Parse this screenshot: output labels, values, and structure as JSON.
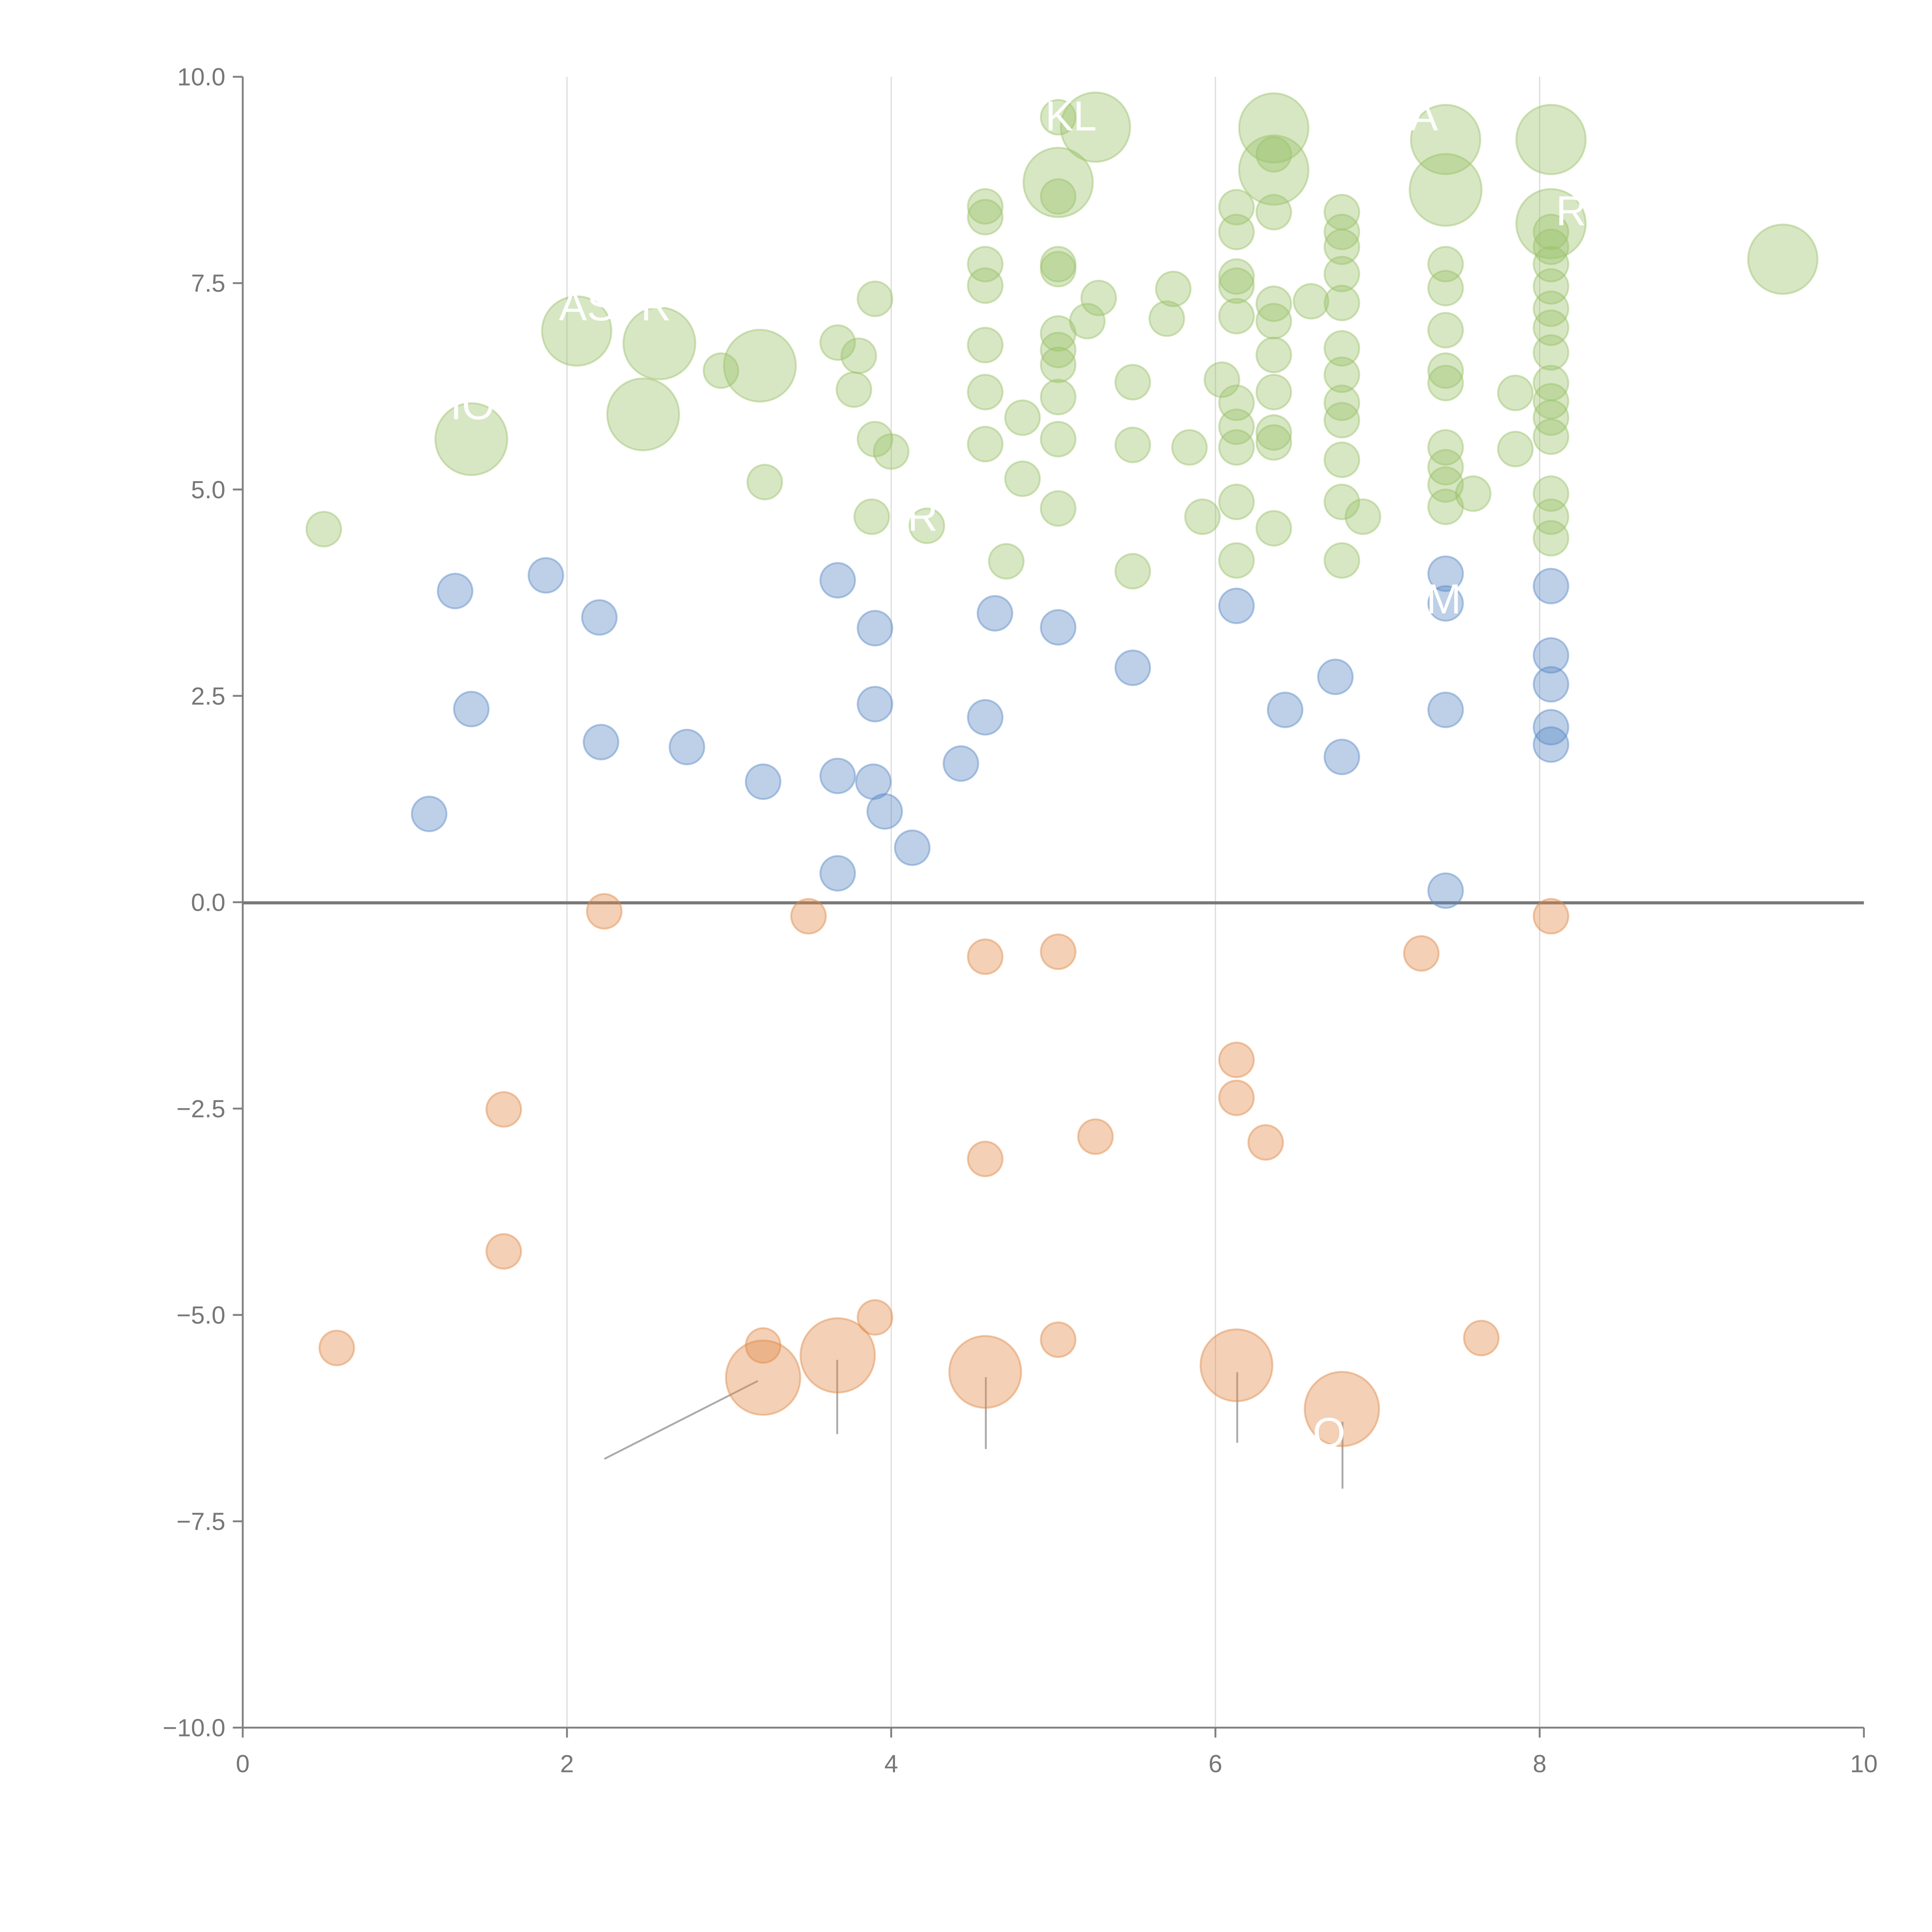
{
  "chart_data": {
    "type": "scatter",
    "title": "",
    "xlabel": "",
    "ylabel": "",
    "xlim": [
      0,
      10
    ],
    "ylim": [
      -10,
      10
    ],
    "grid": "vertical",
    "x_ticks": [
      "0",
      "2",
      "4",
      "6",
      "8",
      "10"
    ],
    "y_ticks": [
      "10.0",
      "7.5",
      "5.0",
      "2.5",
      "0.0",
      "−2.5",
      "−5.0",
      "−7.5",
      "−10.0"
    ],
    "point_format": "[x, y, size]",
    "series": [
      {
        "name": "green",
        "color": "#9cc26b",
        "points": [
          [
            2.06,
            6.92,
            4
          ],
          [
            2.57,
            6.77,
            4.3
          ],
          [
            2.47,
            5.91,
            4.3
          ],
          [
            1.41,
            5.61,
            4.3
          ],
          [
            3.19,
            6.5,
            4.3
          ],
          [
            5.03,
            8.72,
            4
          ],
          [
            5.26,
            9.39,
            4
          ],
          [
            6.36,
            9.38,
            4
          ],
          [
            6.36,
            8.87,
            4
          ],
          [
            7.42,
            9.24,
            4
          ],
          [
            7.42,
            8.63,
            4.3
          ],
          [
            8.07,
            9.24,
            4
          ],
          [
            8.07,
            8.22,
            4
          ],
          [
            9.5,
            7.79,
            4
          ],
          [
            0.5,
            4.52,
            1
          ],
          [
            2.95,
            6.44,
            1
          ],
          [
            3.22,
            5.09,
            1
          ],
          [
            3.67,
            6.78,
            1
          ],
          [
            3.8,
            6.62,
            1
          ],
          [
            3.77,
            6.21,
            1
          ],
          [
            3.9,
            7.31,
            1
          ],
          [
            3.9,
            5.61,
            1
          ],
          [
            4.0,
            5.46,
            1
          ],
          [
            3.88,
            4.67,
            1
          ],
          [
            4.22,
            4.56,
            1
          ],
          [
            4.58,
            8.43,
            1
          ],
          [
            4.58,
            8.3,
            1
          ],
          [
            4.58,
            7.73,
            1
          ],
          [
            4.58,
            7.47,
            1
          ],
          [
            4.58,
            6.75,
            1
          ],
          [
            4.58,
            6.18,
            1
          ],
          [
            4.58,
            5.55,
            1
          ],
          [
            4.71,
            4.13,
            1
          ],
          [
            4.81,
            5.87,
            1
          ],
          [
            4.81,
            5.13,
            1
          ],
          [
            5.03,
            9.51,
            1
          ],
          [
            5.03,
            8.55,
            1
          ],
          [
            5.03,
            7.73,
            1
          ],
          [
            5.03,
            7.67,
            1
          ],
          [
            5.03,
            6.89,
            1
          ],
          [
            5.03,
            6.69,
            1
          ],
          [
            5.03,
            6.51,
            1
          ],
          [
            5.03,
            6.12,
            1
          ],
          [
            5.03,
            5.61,
            1
          ],
          [
            5.03,
            4.77,
            1
          ],
          [
            5.21,
            7.04,
            1
          ],
          [
            5.28,
            7.32,
            1
          ],
          [
            5.49,
            6.3,
            1
          ],
          [
            5.49,
            5.54,
            1
          ],
          [
            5.49,
            4.01,
            1
          ],
          [
            5.7,
            7.07,
            1
          ],
          [
            5.74,
            7.43,
            1
          ],
          [
            5.84,
            5.51,
            1
          ],
          [
            5.92,
            4.67,
            1
          ],
          [
            6.04,
            6.33,
            1
          ],
          [
            6.13,
            8.42,
            1
          ],
          [
            6.13,
            8.12,
            1
          ],
          [
            6.13,
            7.58,
            1
          ],
          [
            6.13,
            7.47,
            1
          ],
          [
            6.13,
            7.1,
            1
          ],
          [
            6.13,
            6.05,
            1
          ],
          [
            6.13,
            5.76,
            1
          ],
          [
            6.13,
            5.51,
            1
          ],
          [
            6.13,
            4.85,
            1
          ],
          [
            6.13,
            4.14,
            1
          ],
          [
            6.36,
            9.06,
            1
          ],
          [
            6.36,
            8.36,
            1
          ],
          [
            6.36,
            7.25,
            1
          ],
          [
            6.36,
            7.04,
            1
          ],
          [
            6.36,
            6.63,
            1
          ],
          [
            6.36,
            6.18,
            1
          ],
          [
            6.36,
            5.69,
            1
          ],
          [
            6.36,
            5.57,
            1
          ],
          [
            6.36,
            4.53,
            1
          ],
          [
            6.59,
            7.28,
            1
          ],
          [
            6.78,
            8.36,
            1
          ],
          [
            6.78,
            8.12,
            1
          ],
          [
            6.78,
            7.94,
            1
          ],
          [
            6.78,
            7.61,
            1
          ],
          [
            6.78,
            7.26,
            1
          ],
          [
            6.78,
            6.71,
            1
          ],
          [
            6.78,
            6.39,
            1
          ],
          [
            6.78,
            6.05,
            1
          ],
          [
            6.78,
            5.84,
            1
          ],
          [
            6.78,
            5.36,
            1
          ],
          [
            6.78,
            4.85,
            1
          ],
          [
            6.78,
            4.14,
            1
          ],
          [
            6.91,
            4.67,
            1
          ],
          [
            7.42,
            7.73,
            1
          ],
          [
            7.42,
            7.44,
            1
          ],
          [
            7.42,
            6.93,
            1
          ],
          [
            7.42,
            6.44,
            1
          ],
          [
            7.42,
            6.29,
            1
          ],
          [
            7.42,
            5.51,
            1
          ],
          [
            7.42,
            5.27,
            1
          ],
          [
            7.42,
            5.06,
            1
          ],
          [
            7.42,
            4.79,
            1
          ],
          [
            7.59,
            4.95,
            1
          ],
          [
            7.85,
            6.17,
            1
          ],
          [
            7.85,
            5.49,
            1
          ],
          [
            8.07,
            8.12,
            1
          ],
          [
            8.07,
            7.94,
            1
          ],
          [
            8.07,
            7.73,
            1
          ],
          [
            8.07,
            7.46,
            1
          ],
          [
            8.07,
            7.19,
            1
          ],
          [
            8.07,
            6.96,
            1
          ],
          [
            8.07,
            6.66,
            1
          ],
          [
            8.07,
            6.29,
            1
          ],
          [
            8.07,
            6.07,
            1
          ],
          [
            8.07,
            5.87,
            1
          ],
          [
            8.07,
            5.64,
            1
          ],
          [
            8.07,
            4.95,
            1
          ],
          [
            8.07,
            4.67,
            1
          ],
          [
            8.07,
            4.41,
            1
          ]
        ]
      },
      {
        "name": "blue",
        "color": "#5b8ac6",
        "points": [
          [
            1.31,
            3.77,
            1
          ],
          [
            1.87,
            3.96,
            1
          ],
          [
            2.2,
            3.45,
            1
          ],
          [
            1.41,
            2.34,
            1
          ],
          [
            2.21,
            1.94,
            1
          ],
          [
            2.74,
            1.88,
            1
          ],
          [
            1.15,
            1.07,
            1
          ],
          [
            3.21,
            1.46,
            1
          ],
          [
            3.67,
            1.53,
            1
          ],
          [
            3.89,
            1.46,
            1
          ],
          [
            3.96,
            1.1,
            1
          ],
          [
            4.13,
            0.66,
            1
          ],
          [
            3.67,
            0.35,
            1
          ],
          [
            3.67,
            3.9,
            1
          ],
          [
            3.9,
            3.32,
            1
          ],
          [
            3.9,
            2.4,
            1
          ],
          [
            4.43,
            1.68,
            1
          ],
          [
            4.58,
            2.24,
            1
          ],
          [
            4.64,
            3.5,
            1
          ],
          [
            5.03,
            3.33,
            1
          ],
          [
            5.49,
            2.84,
            1
          ],
          [
            6.13,
            3.59,
            1
          ],
          [
            6.43,
            2.33,
            1
          ],
          [
            6.74,
            2.73,
            1
          ],
          [
            6.78,
            1.76,
            1
          ],
          [
            7.42,
            3.98,
            1
          ],
          [
            7.42,
            3.62,
            1
          ],
          [
            7.42,
            2.33,
            1
          ],
          [
            7.42,
            0.14,
            1
          ],
          [
            8.07,
            3.83,
            1
          ],
          [
            8.07,
            2.99,
            1
          ],
          [
            8.07,
            2.64,
            1
          ],
          [
            8.07,
            2.12,
            1
          ],
          [
            8.07,
            1.91,
            1
          ]
        ]
      },
      {
        "name": "orange",
        "color": "#e08a48",
        "points": [
          [
            2.23,
            -0.11,
            1
          ],
          [
            3.49,
            -0.17,
            1
          ],
          [
            4.58,
            -0.66,
            1
          ],
          [
            5.03,
            -0.6,
            1
          ],
          [
            7.27,
            -0.62,
            1
          ],
          [
            8.07,
            -0.17,
            1
          ],
          [
            6.13,
            -1.91,
            1
          ],
          [
            6.13,
            -2.37,
            1
          ],
          [
            5.26,
            -2.84,
            1
          ],
          [
            6.31,
            -2.91,
            1
          ],
          [
            1.61,
            -2.51,
            1
          ],
          [
            4.58,
            -3.11,
            1
          ],
          [
            1.61,
            -4.23,
            1
          ],
          [
            0.58,
            -5.4,
            1
          ],
          [
            3.21,
            -5.37,
            1
          ],
          [
            3.9,
            -5.03,
            1
          ],
          [
            5.03,
            -5.3,
            1
          ],
          [
            7.64,
            -5.28,
            1
          ],
          [
            3.21,
            -5.76,
            4.6
          ],
          [
            3.67,
            -5.49,
            4.6
          ],
          [
            4.58,
            -5.69,
            4.3
          ],
          [
            6.13,
            -5.61,
            4.3
          ],
          [
            6.78,
            -6.14,
            4.6
          ]
        ]
      }
    ],
    "annotations": [
      {
        "text": "ASTR",
        "x": 1.95,
        "y": 7.05
      },
      {
        "text": "IO",
        "x": 1.28,
        "y": 5.85
      },
      {
        "text": "R",
        "x": 4.1,
        "y": 4.5
      },
      {
        "text": "KL",
        "x": 4.95,
        "y": 9.35
      },
      {
        "text": "A",
        "x": 7.2,
        "y": 9.35
      },
      {
        "text": "R",
        "x": 8.1,
        "y": 8.2
      },
      {
        "text": "M",
        "x": 7.3,
        "y": 3.5
      },
      {
        "text": "O",
        "x": 6.6,
        "y": -6.6
      }
    ]
  }
}
